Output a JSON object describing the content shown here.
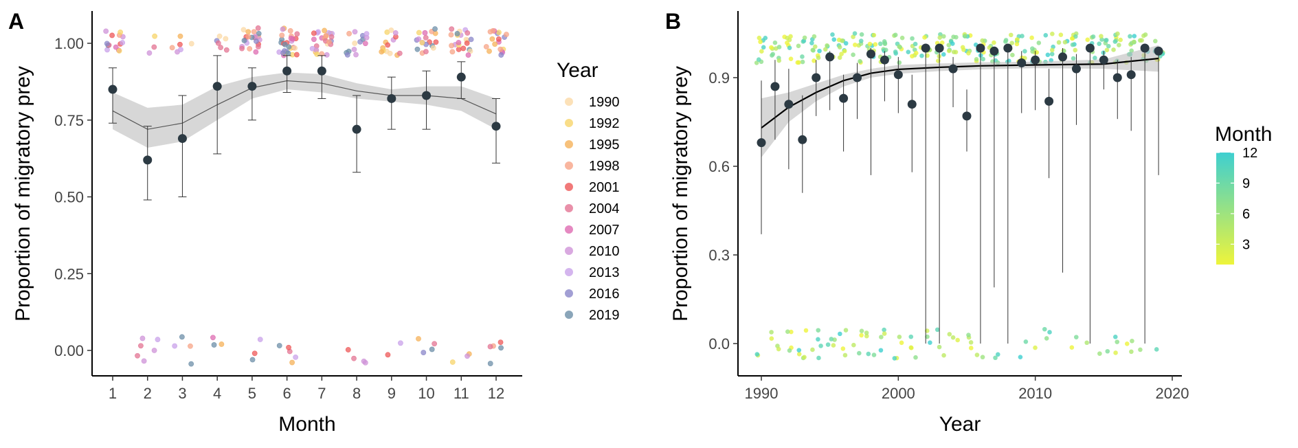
{
  "chart_data": [
    {
      "panel": "A",
      "type": "line",
      "xlabel": "Month",
      "ylabel": "Proportion of migratory prey",
      "xlim": [
        0.4,
        12.6
      ],
      "ylim": [
        -0.05,
        1.09
      ],
      "x_ticks": [
        "1",
        "2",
        "3",
        "4",
        "5",
        "6",
        "7",
        "8",
        "9",
        "10",
        "11",
        "12"
      ],
      "y_ticks": [
        "0.00",
        "0.25",
        "0.50",
        "0.75",
        "1.00"
      ],
      "y_tick_values": [
        0,
        0.25,
        0.5,
        0.75,
        1.0
      ],
      "grid": false,
      "means": {
        "x": [
          1,
          2,
          3,
          4,
          5,
          6,
          7,
          8,
          9,
          10,
          11,
          12
        ],
        "y": [
          0.85,
          0.62,
          0.69,
          0.86,
          0.86,
          0.91,
          0.91,
          0.72,
          0.82,
          0.83,
          0.89,
          0.73
        ],
        "ci_low": [
          0.74,
          0.49,
          0.5,
          0.64,
          0.75,
          0.84,
          0.82,
          0.58,
          0.72,
          0.72,
          0.82,
          0.61
        ],
        "ci_high": [
          0.92,
          0.73,
          0.83,
          0.96,
          0.92,
          0.96,
          0.96,
          0.83,
          0.89,
          0.91,
          0.94,
          0.82
        ]
      },
      "smooth": {
        "x": [
          1,
          2,
          3,
          4,
          5,
          6,
          7,
          8,
          9,
          10,
          11,
          12
        ],
        "y": [
          0.78,
          0.72,
          0.74,
          0.8,
          0.855,
          0.878,
          0.87,
          0.845,
          0.83,
          0.83,
          0.82,
          0.77
        ],
        "low": [
          0.72,
          0.66,
          0.68,
          0.75,
          0.82,
          0.85,
          0.84,
          0.82,
          0.81,
          0.8,
          0.78,
          0.72
        ],
        "high": [
          0.84,
          0.79,
          0.8,
          0.86,
          0.89,
          0.905,
          0.9,
          0.87,
          0.85,
          0.86,
          0.86,
          0.82
        ]
      },
      "legend": {
        "title": "Year",
        "position": "right",
        "entries": [
          "1990",
          "1992",
          "1995",
          "1998",
          "2001",
          "2004",
          "2007",
          "2010",
          "2013",
          "2016",
          "2019"
        ],
        "colors": [
          "#fbd9a6",
          "#f7d46a",
          "#f5b25a",
          "#f7a487",
          "#ee5858",
          "#e37493",
          "#de6cb1",
          "#cf93d8",
          "#c9a2ea",
          "#8b87c9",
          "#6d8fa8"
        ]
      },
      "top_count_per_month": [
        14,
        3,
        6,
        6,
        22,
        28,
        26,
        14,
        14,
        18,
        22,
        18
      ],
      "bottom_count_per_month": [
        0,
        6,
        4,
        3,
        3,
        5,
        0,
        4,
        2,
        4,
        3,
        5
      ]
    },
    {
      "panel": "B",
      "type": "line",
      "xlabel": "Year",
      "ylabel": "Proportion of migratory prey",
      "xlim": [
        1988.8,
        2020.7
      ],
      "ylim": [
        -0.105,
        1.145
      ],
      "x_ticks": [
        "1990",
        "2000",
        "2010",
        "2020"
      ],
      "x_tick_values": [
        1990,
        2000,
        2010,
        2020
      ],
      "y_ticks": [
        "0.0",
        "0.3",
        "0.6",
        "0.9"
      ],
      "y_tick_values": [
        0,
        0.3,
        0.6,
        0.9
      ],
      "grid": false,
      "means": {
        "x": [
          1990,
          1991,
          1992,
          1993,
          1994,
          1995,
          1996,
          1997,
          1998,
          1999,
          2000,
          2001,
          2002,
          2003,
          2004,
          2005,
          2006,
          2007,
          2008,
          2009,
          2010,
          2011,
          2012,
          2013,
          2014,
          2015,
          2016,
          2017,
          2018,
          2019
        ],
        "y": [
          0.68,
          0.87,
          0.81,
          0.69,
          0.9,
          0.97,
          0.83,
          0.9,
          0.98,
          0.96,
          0.91,
          0.81,
          1.0,
          1.0,
          0.93,
          0.77,
          1.0,
          0.99,
          1.0,
          0.95,
          0.96,
          0.82,
          0.97,
          0.93,
          1.0,
          0.96,
          0.9,
          0.91,
          1.0,
          0.99
        ],
        "ci_low": [
          0.37,
          0.69,
          0.59,
          0.51,
          0.77,
          0.79,
          0.65,
          0.76,
          0.57,
          0.82,
          0.78,
          0.58,
          0.0,
          0.0,
          0.8,
          0.65,
          0.0,
          0.19,
          0.0,
          0.78,
          0.79,
          0.56,
          0.24,
          0.74,
          0.0,
          0.86,
          0.76,
          0.72,
          0.0,
          0.57
        ],
        "ci_high": [
          0.89,
          0.96,
          0.93,
          0.84,
          0.96,
          0.99,
          0.91,
          0.95,
          1.0,
          0.99,
          0.97,
          0.91,
          1.0,
          1.0,
          0.97,
          0.86,
          1.0,
          1.0,
          1.0,
          0.99,
          0.99,
          0.93,
          1.0,
          0.98,
          1.0,
          0.99,
          0.96,
          0.97,
          1.0,
          1.0
        ]
      },
      "smooth": {
        "x": [
          1990,
          1992,
          1994,
          1996,
          1998,
          2000,
          2003,
          2006,
          2010,
          2015,
          2019
        ],
        "y": [
          0.73,
          0.8,
          0.85,
          0.89,
          0.915,
          0.928,
          0.935,
          0.94,
          0.943,
          0.946,
          0.965
        ],
        "low": [
          0.63,
          0.75,
          0.82,
          0.87,
          0.9,
          0.913,
          0.922,
          0.928,
          0.932,
          0.93,
          0.92
        ],
        "high": [
          0.83,
          0.85,
          0.88,
          0.91,
          0.93,
          0.943,
          0.948,
          0.952,
          0.954,
          0.962,
          1.01
        ]
      },
      "colorbar": {
        "title": "Month",
        "ticks": [
          "3",
          "6",
          "9",
          "12"
        ],
        "tick_values": [
          3,
          6,
          9,
          12
        ],
        "range": [
          1,
          12
        ],
        "color_low": "#eef43b",
        "color_high": "#3ecfd0"
      },
      "top_count_per_year": [
        9,
        9,
        8,
        8,
        10,
        10,
        10,
        10,
        10,
        10,
        10,
        8,
        9,
        9,
        10,
        10,
        10,
        9,
        9,
        10,
        10,
        8,
        9,
        9,
        9,
        9,
        10,
        10,
        10,
        10
      ],
      "bottom_count_per_year": [
        2,
        4,
        4,
        5,
        5,
        4,
        4,
        4,
        4,
        4,
        4,
        4,
        3,
        3,
        3,
        4,
        2,
        2,
        0,
        2,
        1,
        3,
        0,
        2,
        1,
        2,
        3,
        3,
        1,
        1
      ]
    }
  ]
}
